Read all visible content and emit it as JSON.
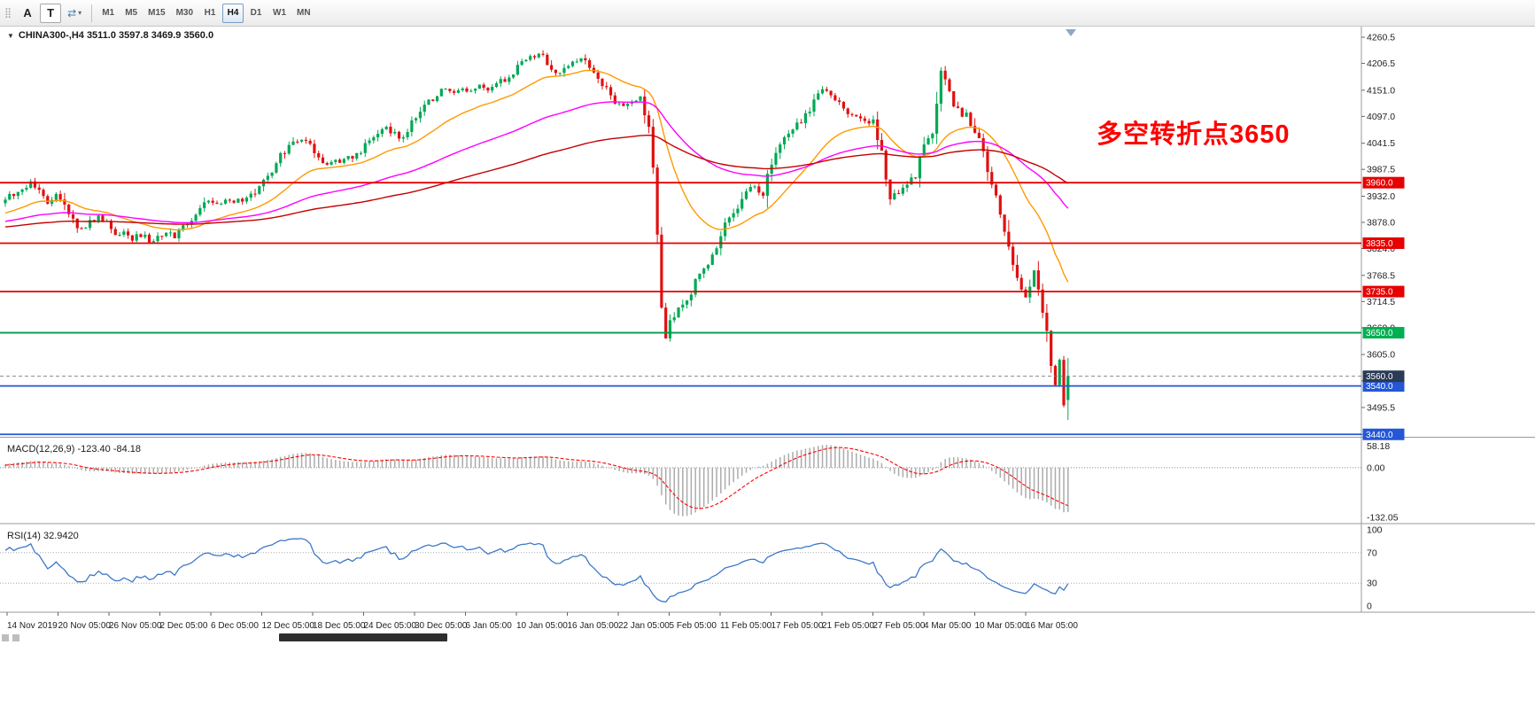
{
  "icons": {
    "collapse": "▼",
    "chevron_down": "▾",
    "cursor_tool": "⇄",
    "grip": "⣿"
  },
  "toolbar": {
    "annotate_label": "A",
    "text_label": "T",
    "timeframes": [
      "M1",
      "M5",
      "M15",
      "M30",
      "H1",
      "H4",
      "D1",
      "W1",
      "MN"
    ],
    "active_timeframe": "H4"
  },
  "chart": {
    "symbol_header": "CHINA300-,H4  3511.0 3597.8 3469.9 3560.0",
    "annotation": {
      "text": "多空转折点3650",
      "color": "#FF0000"
    },
    "price_axis_ticks": [
      "4260.5",
      "4206.5",
      "4151.0",
      "4097.0",
      "4041.5",
      "3987.5",
      "3932.0",
      "3878.0",
      "3824.0",
      "3768.5",
      "3714.5",
      "3660.0",
      "3605.0",
      "3550.5",
      "3495.5",
      "3440.0"
    ],
    "levels": [
      {
        "value": 3960.0,
        "label": "3960.0",
        "color": "#E60000",
        "tag_bg": "#E60000",
        "tag_fg": "#FFFFFF",
        "width": 1.8
      },
      {
        "value": 3835.0,
        "label": "3835.0",
        "color": "#E60000",
        "tag_bg": "#E60000",
        "tag_fg": "#FFFFFF",
        "width": 1.8
      },
      {
        "value": 3735.0,
        "label": "3735.0",
        "color": "#E60000",
        "tag_bg": "#E60000",
        "tag_fg": "#FFFFFF",
        "width": 1.8
      },
      {
        "value": 3650.0,
        "label": "3650.0",
        "color": "#009B48",
        "tag_bg": "#00B050",
        "tag_fg": "#FFFFFF",
        "width": 1.8
      },
      {
        "value": 3540.0,
        "label": "3540.0",
        "color": "#2457D6",
        "tag_bg": "#2457D6",
        "tag_fg": "#FFFFFF",
        "width": 1.8
      },
      {
        "value": 3440.0,
        "label": "3440.0",
        "color": "#2457D6",
        "tag_bg": "#2457D6",
        "tag_fg": "#FFFFFF",
        "width": 1.8
      }
    ],
    "current_price": {
      "value": 3560.0,
      "label": "3560.0",
      "tag_bg": "#2B3A55",
      "tag_fg": "#FFFFFF"
    }
  },
  "chart_data": {
    "type": "candlestick",
    "symbol": "CHINA300-",
    "timeframe": "H4",
    "current_bar": {
      "open": 3511.0,
      "high": 3597.8,
      "low": 3469.9,
      "close": 3560.0
    },
    "bars": 252,
    "up_color": "#00A854",
    "down_color": "#E01010",
    "y_top": 4282.5,
    "y_bottom": 3435.0,
    "price_path": [
      [
        0,
        3928
      ],
      [
        3,
        3945
      ],
      [
        6,
        3958
      ],
      [
        8,
        3938
      ],
      [
        10,
        3918
      ],
      [
        12,
        3940
      ],
      [
        14,
        3910
      ],
      [
        16,
        3880
      ],
      [
        18,
        3862
      ],
      [
        20,
        3878
      ],
      [
        22,
        3890
      ],
      [
        24,
        3872
      ],
      [
        26,
        3850
      ],
      [
        28,
        3858
      ],
      [
        30,
        3844
      ],
      [
        32,
        3852
      ],
      [
        34,
        3840
      ],
      [
        36,
        3846
      ],
      [
        38,
        3858
      ],
      [
        40,
        3845
      ],
      [
        42,
        3866
      ],
      [
        44,
        3886
      ],
      [
        46,
        3906
      ],
      [
        48,
        3924
      ],
      [
        50,
        3916
      ],
      [
        52,
        3922
      ],
      [
        54,
        3918
      ],
      [
        56,
        3926
      ],
      [
        58,
        3934
      ],
      [
        60,
        3952
      ],
      [
        62,
        3972
      ],
      [
        64,
        3998
      ],
      [
        66,
        4024
      ],
      [
        68,
        4042
      ],
      [
        70,
        4052
      ],
      [
        72,
        4044
      ],
      [
        74,
        4016
      ],
      [
        76,
        4000
      ],
      [
        78,
        4008
      ],
      [
        80,
        4004
      ],
      [
        82,
        4016
      ],
      [
        84,
        4026
      ],
      [
        86,
        4044
      ],
      [
        88,
        4062
      ],
      [
        90,
        4072
      ],
      [
        92,
        4060
      ],
      [
        94,
        4048
      ],
      [
        96,
        4088
      ],
      [
        98,
        4110
      ],
      [
        100,
        4128
      ],
      [
        102,
        4144
      ],
      [
        104,
        4152
      ],
      [
        106,
        4146
      ],
      [
        108,
        4156
      ],
      [
        110,
        4148
      ],
      [
        112,
        4160
      ],
      [
        114,
        4150
      ],
      [
        116,
        4162
      ],
      [
        118,
        4174
      ],
      [
        120,
        4190
      ],
      [
        122,
        4206
      ],
      [
        124,
        4218
      ],
      [
        126,
        4226
      ],
      [
        128,
        4204
      ],
      [
        130,
        4186
      ],
      [
        132,
        4198
      ],
      [
        134,
        4210
      ],
      [
        136,
        4218
      ],
      [
        138,
        4196
      ],
      [
        140,
        4180
      ],
      [
        142,
        4156
      ],
      [
        144,
        4130
      ],
      [
        146,
        4118
      ],
      [
        148,
        4128
      ],
      [
        150,
        4132
      ],
      [
        152,
        4086
      ],
      [
        153,
        3992
      ],
      [
        154,
        3858
      ],
      [
        155,
        3702
      ],
      [
        156,
        3645
      ],
      [
        157,
        3668
      ],
      [
        159,
        3694
      ],
      [
        161,
        3722
      ],
      [
        163,
        3752
      ],
      [
        165,
        3780
      ],
      [
        167,
        3812
      ],
      [
        169,
        3852
      ],
      [
        171,
        3882
      ],
      [
        173,
        3908
      ],
      [
        175,
        3944
      ],
      [
        177,
        3952
      ],
      [
        179,
        3938
      ],
      [
        181,
        4008
      ],
      [
        183,
        4038
      ],
      [
        185,
        4066
      ],
      [
        187,
        4082
      ],
      [
        189,
        4102
      ],
      [
        191,
        4126
      ],
      [
        193,
        4150
      ],
      [
        195,
        4142
      ],
      [
        197,
        4120
      ],
      [
        199,
        4104
      ],
      [
        201,
        4096
      ],
      [
        203,
        4088
      ],
      [
        205,
        4082
      ],
      [
        207,
        4018
      ],
      [
        209,
        3932
      ],
      [
        211,
        3944
      ],
      [
        213,
        3956
      ],
      [
        215,
        3976
      ],
      [
        217,
        4034
      ],
      [
        219,
        4072
      ],
      [
        221,
        4192
      ],
      [
        223,
        4150
      ],
      [
        225,
        4106
      ],
      [
        227,
        4098
      ],
      [
        229,
        4072
      ],
      [
        231,
        4018
      ],
      [
        233,
        3958
      ],
      [
        235,
        3898
      ],
      [
        237,
        3834
      ],
      [
        239,
        3768
      ],
      [
        241,
        3724
      ],
      [
        243,
        3774
      ],
      [
        244,
        3742
      ],
      [
        246,
        3652
      ],
      [
        247,
        3592
      ],
      [
        248,
        3545
      ],
      [
        249,
        3590
      ],
      [
        250,
        3505
      ],
      [
        251,
        3560
      ]
    ],
    "warmup_path": [
      [
        0,
        3848
      ],
      [
        12,
        3882
      ],
      [
        24,
        3856
      ],
      [
        36,
        3902
      ],
      [
        48,
        3875
      ],
      [
        59,
        3922
      ]
    ],
    "x_labels": [
      "14 Nov 2019",
      "20 Nov 05:00",
      "26 Nov 05:00",
      "2 Dec 05:00",
      "6 Dec 05:00",
      "12 Dec 05:00",
      "18 Dec 05:00",
      "24 Dec 05:00",
      "30 Dec 05:00",
      "6 Jan 05:00",
      "10 Jan 05:00",
      "16 Jan 05:00",
      "22 Jan 05:00",
      "5 Feb 05:00",
      "11 Feb 05:00",
      "17 Feb 05:00",
      "21 Feb 05:00",
      "27 Feb 05:00",
      "4 Mar 05:00",
      "10 Mar 05:00",
      "16 Mar 05:00"
    ],
    "ma_lines": [
      {
        "period": 24,
        "color": "#FF9900",
        "name": "ma-fast"
      },
      {
        "period": 72,
        "color": "#FF00FF",
        "name": "ma-mid"
      },
      {
        "period": 150,
        "color": "#C40000",
        "name": "ma-slow"
      }
    ]
  },
  "macd_panel": {
    "header": "MACD(12,26,9) -123.40 -84.18",
    "fast": 12,
    "slow": 26,
    "signal": 9,
    "value": -123.4,
    "signal_value": -84.18,
    "axis_labels": [
      "58.18",
      "0.00",
      "-132.05"
    ],
    "histogram_color": "#ABABAB",
    "signal_color": "#FF0000"
  },
  "rsi_panel": {
    "header": "RSI(14) 32.9420",
    "period": 14,
    "value": 32.942,
    "axis_labels": [
      "100",
      "70",
      "30",
      "0"
    ],
    "levels": [
      70,
      30
    ],
    "line_color": "#3C78C8"
  }
}
